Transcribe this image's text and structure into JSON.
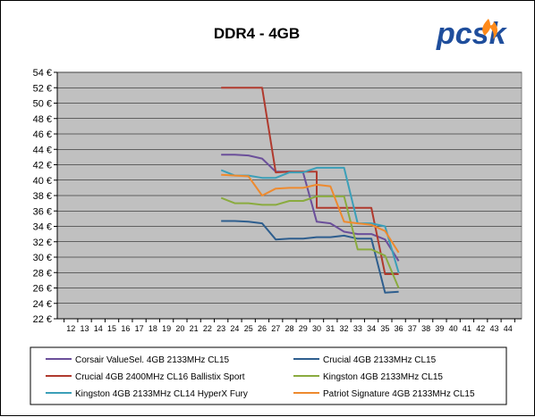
{
  "logo_text": "pcsk",
  "colors": {
    "plot_bg": "#c0c0c0",
    "logo_blue": "#1f4e9c",
    "logo_flame": "#ff8a1a"
  },
  "chart_data": {
    "type": "line",
    "title": "DDR4 - 4GB",
    "xlabel": "",
    "ylabel": "",
    "xlim": [
      11,
      45
    ],
    "ylim": [
      22,
      54
    ],
    "x_ticks": [
      12,
      13,
      14,
      15,
      16,
      17,
      18,
      19,
      20,
      21,
      22,
      23,
      24,
      25,
      26,
      27,
      28,
      29,
      30,
      31,
      32,
      33,
      34,
      35,
      36,
      37,
      38,
      39,
      40,
      41,
      42,
      43,
      44
    ],
    "y_ticks": [
      22,
      24,
      26,
      28,
      30,
      32,
      34,
      36,
      38,
      40,
      42,
      44,
      46,
      48,
      50,
      52,
      54
    ],
    "y_tick_labels": [
      "22 €",
      "24 €",
      "26 €",
      "28 €",
      "30 €",
      "32 €",
      "34 €",
      "36 €",
      "38 €",
      "40 €",
      "42 €",
      "44 €",
      "46 €",
      "48 €",
      "50 €",
      "52 €",
      "54 €"
    ],
    "grid": true,
    "legend_position": "bottom",
    "series": [
      {
        "name": "Corsair ValueSel. 4GB 2133MHz CL15",
        "color": "#6b4f9a",
        "points": [
          [
            23,
            43.3
          ],
          [
            24,
            43.3
          ],
          [
            25,
            43.2
          ],
          [
            26,
            42.8
          ],
          [
            27,
            41.1
          ],
          [
            28,
            41.1
          ],
          [
            29,
            41.0
          ],
          [
            30,
            34.6
          ],
          [
            31,
            34.4
          ],
          [
            32,
            33.3
          ],
          [
            33,
            33.0
          ],
          [
            34,
            33.0
          ],
          [
            35,
            32.3
          ],
          [
            36,
            29.5
          ]
        ]
      },
      {
        "name": "Crucial 4GB 2133MHz CL15",
        "color": "#2e5e8e",
        "points": [
          [
            23,
            34.7
          ],
          [
            24,
            34.7
          ],
          [
            25,
            34.6
          ],
          [
            26,
            34.4
          ],
          [
            27,
            32.3
          ],
          [
            28,
            32.4
          ],
          [
            29,
            32.4
          ],
          [
            30,
            32.6
          ],
          [
            31,
            32.6
          ],
          [
            32,
            32.8
          ],
          [
            33,
            32.4
          ],
          [
            34,
            32.4
          ],
          [
            35,
            25.4
          ],
          [
            36,
            25.5
          ]
        ]
      },
      {
        "name": "Crucial 4GB 2400MHz CL16 Ballistix Sport",
        "color": "#b03a2e",
        "points": [
          [
            23,
            52.0
          ],
          [
            24,
            52.0
          ],
          [
            25,
            52.0
          ],
          [
            26,
            52.0
          ],
          [
            27,
            41.0
          ],
          [
            28,
            41.1
          ],
          [
            29,
            41.1
          ],
          [
            30,
            41.1
          ],
          [
            30,
            36.4
          ],
          [
            31,
            36.4
          ],
          [
            32,
            36.4
          ],
          [
            33,
            36.4
          ],
          [
            34,
            36.4
          ],
          [
            35,
            27.8
          ],
          [
            36,
            27.8
          ]
        ]
      },
      {
        "name": "Kingston 4GB 2133MHz CL15",
        "color": "#8aab3f",
        "points": [
          [
            23,
            37.7
          ],
          [
            24,
            37.0
          ],
          [
            25,
            37.0
          ],
          [
            26,
            36.8
          ],
          [
            27,
            36.8
          ],
          [
            28,
            37.3
          ],
          [
            29,
            37.3
          ],
          [
            30,
            37.9
          ],
          [
            31,
            37.9
          ],
          [
            32,
            37.9
          ],
          [
            33,
            31.0
          ],
          [
            34,
            31.0
          ],
          [
            35,
            30.2
          ],
          [
            36,
            26.0
          ]
        ]
      },
      {
        "name": "Kingston 4GB 2133MHz CL14 HyperX Fury",
        "color": "#3b9fb8",
        "points": [
          [
            23,
            41.3
          ],
          [
            24,
            40.6
          ],
          [
            25,
            40.6
          ],
          [
            26,
            40.3
          ],
          [
            27,
            40.3
          ],
          [
            28,
            41.0
          ],
          [
            29,
            41.0
          ],
          [
            30,
            41.6
          ],
          [
            31,
            41.6
          ],
          [
            32,
            41.6
          ],
          [
            33,
            34.4
          ],
          [
            34,
            34.4
          ],
          [
            35,
            34.0
          ],
          [
            36,
            28.0
          ]
        ]
      },
      {
        "name": "Patriot Signature 4GB 2133MHz CL15",
        "color": "#ee8a2e",
        "points": [
          [
            23,
            40.7
          ],
          [
            24,
            40.6
          ],
          [
            25,
            40.5
          ],
          [
            26,
            38.0
          ],
          [
            27,
            38.9
          ],
          [
            28,
            39.0
          ],
          [
            29,
            39.0
          ],
          [
            30,
            39.4
          ],
          [
            31,
            39.2
          ],
          [
            32,
            34.6
          ],
          [
            33,
            34.4
          ],
          [
            34,
            34.2
          ],
          [
            35,
            33.4
          ],
          [
            36,
            30.6
          ]
        ]
      }
    ]
  }
}
